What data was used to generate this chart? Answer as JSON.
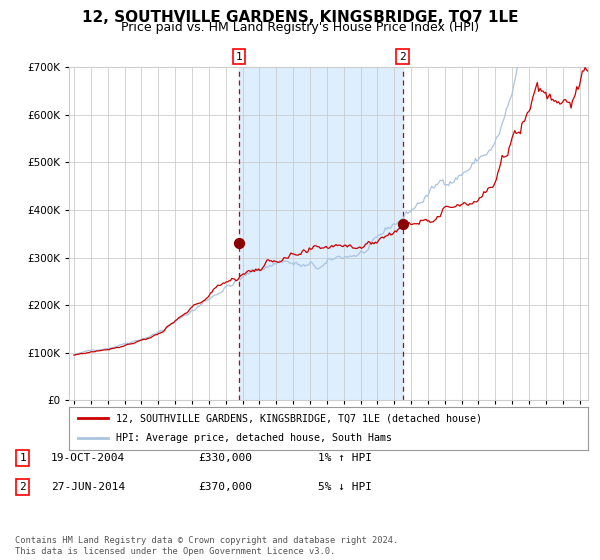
{
  "title": "12, SOUTHVILLE GARDENS, KINGSBRIDGE, TQ7 1LE",
  "subtitle": "Price paid vs. HM Land Registry's House Price Index (HPI)",
  "legend_line1": "12, SOUTHVILLE GARDENS, KINGSBRIDGE, TQ7 1LE (detached house)",
  "legend_line2": "HPI: Average price, detached house, South Hams",
  "transaction1_label": "1",
  "transaction1_date": "19-OCT-2004",
  "transaction1_price": "£330,000",
  "transaction1_hpi": "1% ↑ HPI",
  "transaction2_label": "2",
  "transaction2_date": "27-JUN-2014",
  "transaction2_price": "£370,000",
  "transaction2_hpi": "5% ↓ HPI",
  "footer": "Contains HM Land Registry data © Crown copyright and database right 2024.\nThis data is licensed under the Open Government Licence v3.0.",
  "sale1_year": 2004.8,
  "sale1_price": 330000,
  "sale2_year": 2014.5,
  "sale2_price": 370000,
  "ylim": [
    0,
    700000
  ],
  "xlim_start": 1994.7,
  "xlim_end": 2025.5,
  "hpi_color": "#aac4e0",
  "price_color": "#cc0000",
  "dot_color": "#8b0000",
  "shade_color": "#ddeeff",
  "grid_color": "#cccccc",
  "bg_color": "#ffffff",
  "title_fontsize": 11,
  "subtitle_fontsize": 9
}
